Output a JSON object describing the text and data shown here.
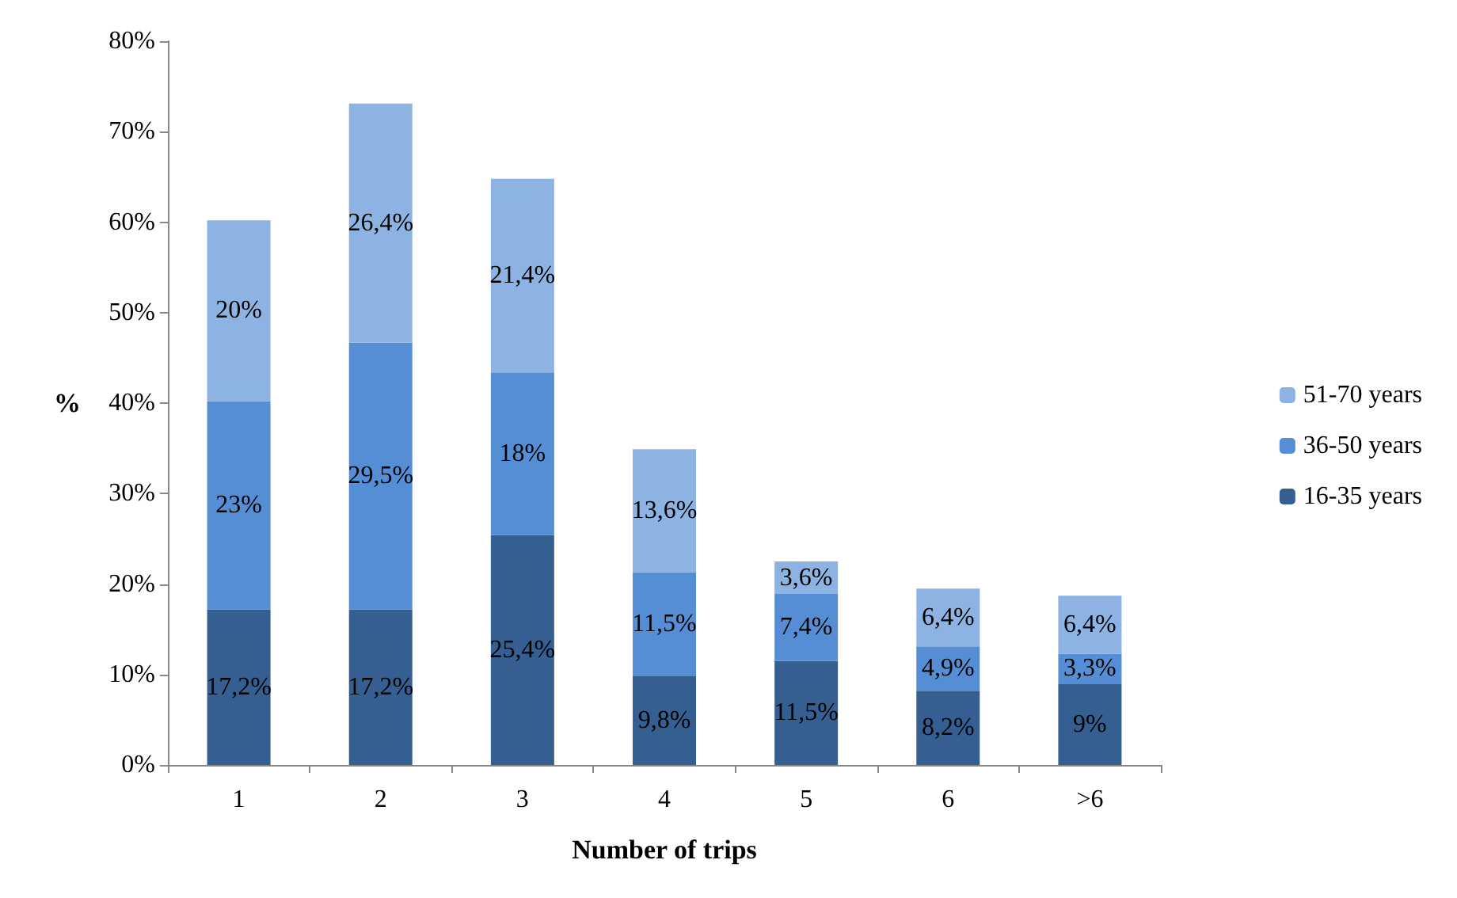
{
  "chart_data": {
    "type": "bar",
    "stacked": true,
    "xlabel": "Number of trips",
    "ylabel": "%",
    "categories": [
      "1",
      "2",
      "3",
      "4",
      "5",
      "6",
      ">6"
    ],
    "ylim": [
      0,
      80
    ],
    "yticks": [
      {
        "value": 0,
        "label": "0%"
      },
      {
        "value": 10,
        "label": "10%"
      },
      {
        "value": 20,
        "label": "20%"
      },
      {
        "value": 30,
        "label": "30%"
      },
      {
        "value": 40,
        "label": "40%"
      },
      {
        "value": 50,
        "label": "50%"
      },
      {
        "value": 60,
        "label": "60%"
      },
      {
        "value": 70,
        "label": "70%"
      },
      {
        "value": 80,
        "label": "80%"
      }
    ],
    "grid": false,
    "legend": "right",
    "series": [
      {
        "name": "16-35 years",
        "color": "#355f91",
        "values": [
          17.2,
          17.2,
          25.4,
          9.8,
          11.5,
          8.2,
          9
        ],
        "value_labels": [
          "17,2%",
          "17,2%",
          "25,4%",
          "9,8%",
          "11,5%",
          "8,2%",
          "9%"
        ]
      },
      {
        "name": "36-50 years",
        "color": "#558ed5",
        "values": [
          23,
          29.5,
          18,
          11.5,
          7.4,
          4.9,
          3.3
        ],
        "value_labels": [
          "23%",
          "29,5%",
          "18%",
          "11,5%",
          "7,4%",
          "4,9%",
          "3,3%"
        ]
      },
      {
        "name": "51-70 years",
        "color": "#8db3e2",
        "values": [
          20,
          26.4,
          21.4,
          13.6,
          3.6,
          6.4,
          6.4
        ],
        "value_labels": [
          "20%",
          "26,4%",
          "21,4%",
          "13,6%",
          "3,6%",
          "6,4%",
          "6,4%"
        ]
      }
    ]
  }
}
